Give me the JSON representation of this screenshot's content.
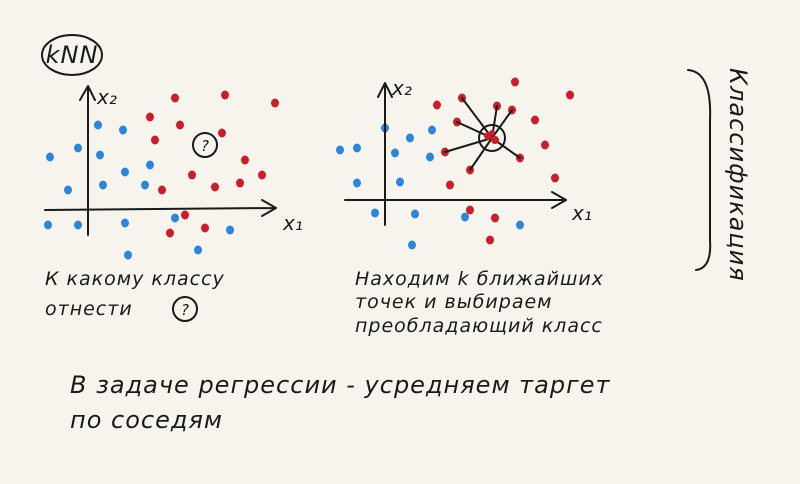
{
  "title": "kNN",
  "left_plot": {
    "y_axis_label": "x₂",
    "x_axis_label": "x₁",
    "query_mark": "?"
  },
  "left_caption": {
    "line1": "К какому классу",
    "line2": "отнести",
    "query_mark": "?"
  },
  "right_plot": {
    "y_axis_label": "x₂",
    "x_axis_label": "x₁"
  },
  "right_caption": {
    "lines": [
      "Находим k ближайших",
      "точек и выбираем",
      "преобладающий класс"
    ]
  },
  "side_label": "Классификация",
  "bottom_note": {
    "lines": [
      "В задаче регрессии - усредняем таргет",
      "по соседям"
    ]
  }
}
